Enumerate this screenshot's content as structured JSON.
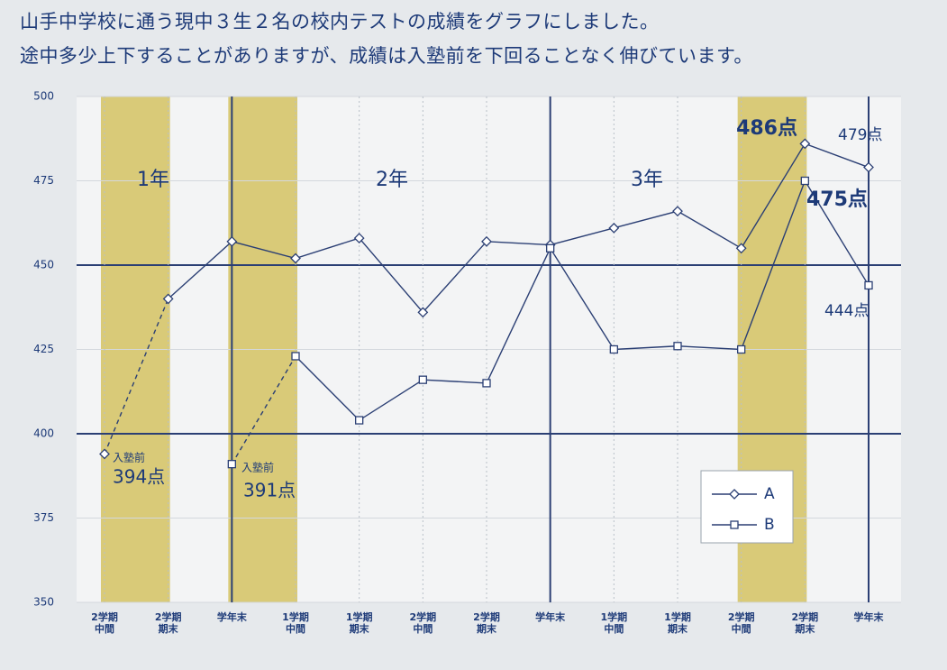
{
  "chart_data": {
    "type": "line",
    "title": [
      "山手中学校に通う現中３生２名の校内テストの成績をグラフにしました。",
      "途中多少上下することがありますが、成績は入塾前を下回ることなく伸びています。"
    ],
    "categories": [
      "2学期\n中間",
      "2学期\n期末",
      "学年末",
      "1学期\n中間",
      "1学期\n期末",
      "2学期\n中間",
      "2学期\n期末",
      "学年末",
      "1学期\n中間",
      "1学期\n期末",
      "2学期\n中間",
      "2学期\n期末",
      "学年末"
    ],
    "series": [
      {
        "name": "A",
        "color": "#2b3f74",
        "marker": "diamond",
        "values": [
          394,
          440,
          457,
          452,
          458,
          436,
          457,
          456,
          461,
          466,
          455,
          486,
          479
        ],
        "value_labels": [
          "394点",
          null,
          null,
          null,
          null,
          null,
          null,
          null,
          null,
          null,
          null,
          "486点",
          "479点"
        ]
      },
      {
        "name": "B",
        "color": "#2b3f74",
        "marker": "square",
        "values": [
          null,
          null,
          391,
          423,
          404,
          416,
          415,
          455,
          425,
          426,
          425,
          475,
          444
        ],
        "value_labels": [
          null,
          null,
          "391点",
          null,
          null,
          null,
          null,
          null,
          null,
          null,
          null,
          "475点",
          "444点"
        ]
      }
    ],
    "annotations": [
      "1年",
      "2年",
      "3年",
      "入塾前",
      "入塾前"
    ],
    "ylim": [
      350,
      500
    ],
    "yticks": [
      350,
      375,
      400,
      425,
      450,
      475,
      500
    ],
    "legend": "lower right"
  }
}
